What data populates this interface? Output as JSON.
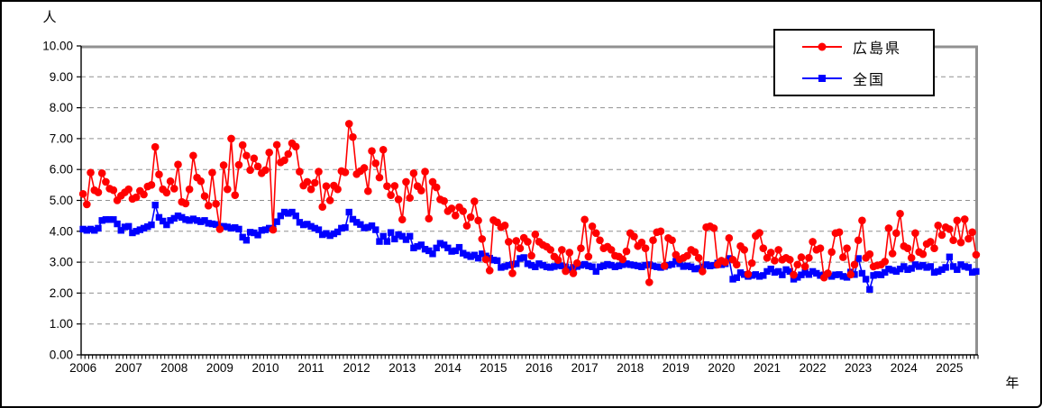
{
  "colors": {
    "hiroshima": "#FF0000",
    "zenkoku": "#0000FF",
    "grid": "#909090",
    "frame": "#909090",
    "axis": "#000000",
    "background": "#FFFFFF"
  },
  "units": {
    "y": "人",
    "x": "年"
  },
  "legend": {
    "items": [
      {
        "label": "広島県"
      },
      {
        "label": "全国"
      }
    ]
  },
  "chart_data": {
    "type": "line",
    "title": "",
    "xlabel": "年",
    "ylabel": "人",
    "x_start": "2006-01",
    "x_end": "2025-08",
    "points_per_series": 236,
    "grid": "horizontal-dashed",
    "legend_position": "top-right",
    "ylim": [
      0,
      10
    ],
    "y_tick_labels": [
      "0.00",
      "1.00",
      "2.00",
      "3.00",
      "4.00",
      "5.00",
      "6.00",
      "7.00",
      "8.00",
      "9.00",
      "10.00"
    ],
    "x_tick_labels": [
      "2006",
      "2007",
      "2008",
      "2009",
      "2010",
      "2011",
      "2012",
      "2013",
      "2014",
      "2015",
      "2016",
      "2017",
      "2018",
      "2019",
      "2020",
      "2021",
      "2022",
      "2023",
      "2024",
      "2025"
    ],
    "series": [
      {
        "name": "広島県",
        "color": "#FF0000",
        "marker": "circle",
        "values": [
          5.21,
          4.87,
          5.9,
          5.33,
          5.26,
          5.88,
          5.6,
          5.38,
          5.33,
          5.0,
          5.15,
          5.26,
          5.36,
          5.05,
          5.1,
          5.31,
          5.19,
          5.45,
          5.5,
          6.73,
          5.84,
          5.36,
          5.25,
          5.62,
          5.38,
          6.16,
          4.95,
          4.9,
          5.36,
          6.45,
          5.74,
          5.62,
          5.14,
          4.83,
          5.9,
          4.89,
          4.07,
          6.14,
          5.36,
          7.0,
          5.17,
          6.15,
          6.79,
          6.45,
          5.98,
          6.36,
          6.1,
          5.88,
          5.98,
          6.55,
          4.05,
          6.8,
          6.23,
          6.3,
          6.5,
          6.85,
          6.74,
          5.93,
          5.48,
          5.6,
          5.36,
          5.57,
          5.93,
          4.79,
          5.46,
          5.0,
          5.48,
          5.36,
          5.95,
          5.91,
          7.48,
          7.05,
          5.85,
          5.95,
          6.05,
          5.3,
          6.6,
          6.2,
          5.74,
          6.64,
          5.46,
          5.17,
          5.47,
          5.03,
          4.38,
          5.6,
          5.08,
          5.88,
          5.46,
          5.32,
          5.93,
          4.41,
          5.6,
          5.42,
          5.03,
          4.98,
          4.65,
          4.74,
          4.51,
          4.78,
          4.65,
          4.18,
          4.46,
          4.97,
          4.35,
          3.75,
          3.09,
          2.73,
          4.36,
          4.29,
          4.13,
          4.19,
          3.66,
          2.64,
          3.69,
          3.45,
          3.79,
          3.66,
          3.21,
          3.9,
          3.66,
          3.56,
          3.5,
          3.4,
          3.18,
          3.07,
          3.4,
          2.71,
          3.31,
          2.64,
          2.97,
          3.45,
          4.38,
          3.18,
          4.16,
          3.94,
          3.71,
          3.45,
          3.5,
          3.4,
          3.21,
          3.18,
          3.09,
          3.35,
          3.94,
          3.83,
          3.52,
          3.64,
          3.45,
          2.35,
          3.71,
          3.97,
          4.0,
          2.88,
          3.78,
          3.71,
          3.24,
          3.09,
          3.14,
          3.21,
          3.4,
          3.33,
          3.14,
          2.7,
          4.13,
          4.16,
          4.1,
          2.92,
          3.05,
          3.0,
          3.78,
          3.08,
          2.92,
          3.52,
          3.4,
          2.61,
          2.97,
          3.85,
          3.95,
          3.45,
          3.14,
          3.31,
          3.05,
          3.4,
          3.08,
          3.14,
          3.08,
          2.59,
          2.92,
          3.16,
          2.86,
          3.14,
          3.66,
          3.4,
          3.45,
          2.5,
          2.64,
          3.33,
          3.94,
          3.97,
          3.16,
          3.45,
          2.6,
          2.92,
          3.71,
          4.35,
          3.14,
          3.26,
          2.86,
          2.9,
          2.92,
          3.02,
          4.1,
          3.28,
          3.94,
          4.57,
          3.52,
          3.45,
          3.14,
          3.94,
          3.33,
          3.26,
          3.59,
          3.66,
          3.45,
          4.19,
          3.88,
          4.13,
          4.07,
          3.71,
          4.35,
          3.64,
          4.39,
          3.76,
          3.97,
          3.24
        ]
      },
      {
        "name": "全国",
        "color": "#0000FF",
        "marker": "square",
        "values": [
          4.07,
          4.03,
          4.07,
          4.03,
          4.1,
          4.35,
          4.38,
          4.38,
          4.38,
          4.24,
          4.03,
          4.14,
          4.16,
          3.95,
          4.0,
          4.05,
          4.1,
          4.15,
          4.21,
          4.85,
          4.45,
          4.33,
          4.21,
          4.35,
          4.42,
          4.5,
          4.45,
          4.38,
          4.35,
          4.4,
          4.35,
          4.31,
          4.35,
          4.26,
          4.24,
          4.22,
          4.16,
          4.16,
          4.14,
          4.1,
          4.12,
          4.07,
          3.81,
          3.71,
          3.97,
          3.95,
          3.88,
          4.03,
          4.05,
          4.1,
          4.08,
          4.31,
          4.5,
          4.62,
          4.58,
          4.62,
          4.5,
          4.29,
          4.21,
          4.23,
          4.16,
          4.1,
          4.05,
          3.89,
          3.93,
          3.86,
          3.92,
          3.98,
          4.1,
          4.12,
          4.62,
          4.39,
          4.29,
          4.22,
          4.11,
          4.13,
          4.18,
          4.05,
          3.67,
          3.84,
          3.67,
          3.96,
          3.75,
          3.89,
          3.84,
          3.73,
          3.84,
          3.46,
          3.51,
          3.56,
          3.42,
          3.37,
          3.27,
          3.46,
          3.61,
          3.56,
          3.46,
          3.35,
          3.37,
          3.48,
          3.29,
          3.23,
          3.18,
          3.23,
          3.13,
          3.27,
          3.2,
          3.13,
          3.07,
          3.05,
          2.83,
          2.86,
          2.9,
          2.93,
          2.95,
          3.12,
          3.15,
          2.95,
          2.9,
          2.85,
          2.95,
          2.9,
          2.85,
          2.83,
          2.86,
          2.9,
          2.88,
          2.85,
          2.76,
          2.83,
          2.86,
          2.9,
          2.93,
          2.88,
          2.85,
          2.7,
          2.85,
          2.88,
          2.93,
          2.9,
          2.85,
          2.88,
          2.92,
          2.95,
          2.92,
          2.9,
          2.88,
          2.85,
          2.9,
          2.92,
          2.88,
          2.85,
          2.83,
          2.86,
          2.9,
          2.93,
          3.03,
          2.95,
          2.86,
          2.88,
          2.85,
          2.78,
          2.8,
          2.85,
          2.92,
          2.88,
          2.9,
          2.97,
          2.92,
          2.95,
          3.12,
          2.45,
          2.5,
          2.66,
          2.6,
          2.54,
          2.57,
          2.6,
          2.54,
          2.57,
          2.7,
          2.78,
          2.67,
          2.7,
          2.59,
          2.76,
          2.7,
          2.45,
          2.51,
          2.59,
          2.67,
          2.6,
          2.7,
          2.64,
          2.57,
          2.59,
          2.6,
          2.54,
          2.59,
          2.6,
          2.54,
          2.51,
          2.68,
          2.6,
          3.12,
          2.64,
          2.45,
          2.12,
          2.57,
          2.6,
          2.59,
          2.67,
          2.78,
          2.74,
          2.7,
          2.78,
          2.86,
          2.76,
          2.8,
          2.92,
          2.86,
          2.9,
          2.83,
          2.86,
          2.67,
          2.7,
          2.76,
          2.83,
          3.17,
          2.86,
          2.76,
          2.92,
          2.86,
          2.83,
          2.67,
          2.7
        ]
      }
    ]
  }
}
